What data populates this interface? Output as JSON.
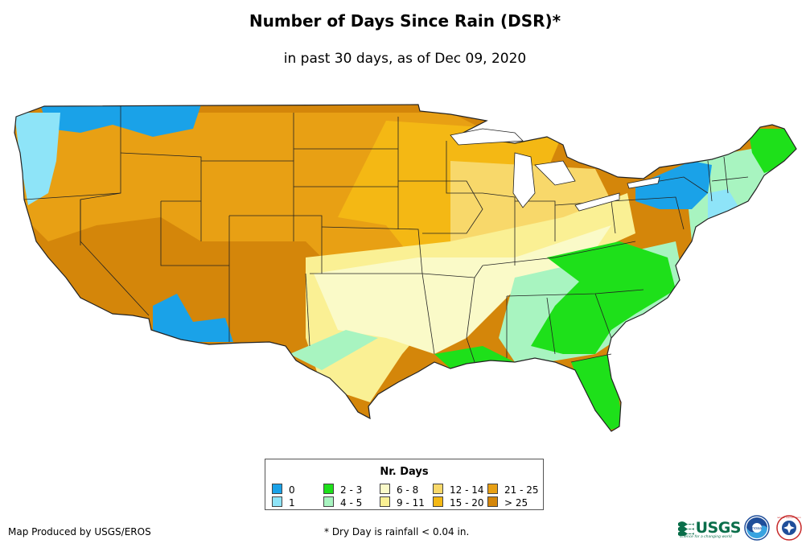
{
  "title": "Number of Days Since Rain (DSR)*",
  "subtitle": "in past 30 days, as of Dec 09, 2020",
  "legend": {
    "title": "Nr. Days",
    "items": [
      {
        "label": "0",
        "color": "#1aa2e8"
      },
      {
        "label": "1",
        "color": "#8ee4f8"
      },
      {
        "label": "2 - 3",
        "color": "#1ee01a"
      },
      {
        "label": "4 - 5",
        "color": "#a8f4c0"
      },
      {
        "label": "6 - 8",
        "color": "#fafac8"
      },
      {
        "label": "9 - 11",
        "color": "#faf094"
      },
      {
        "label": "12 - 14",
        "color": "#f8d86a"
      },
      {
        "label": "15 - 20",
        "color": "#f4b814"
      },
      {
        "label": "21 - 25",
        "color": "#e8a014"
      },
      {
        "label": "> 25",
        "color": "#d4860a"
      }
    ]
  },
  "footer": {
    "produced_by": "Map Produced by USGS/EROS",
    "note": "* Dry Day is rainfall < 0.04 in."
  },
  "logos": [
    {
      "name": "usgs-logo",
      "text": "USGS",
      "tagline": "science for a changing world"
    },
    {
      "name": "noaa-logo",
      "text": "noaa"
    },
    {
      "name": "nws-logo",
      "text": "NATIONAL WEATHER SERVICE"
    }
  ]
}
